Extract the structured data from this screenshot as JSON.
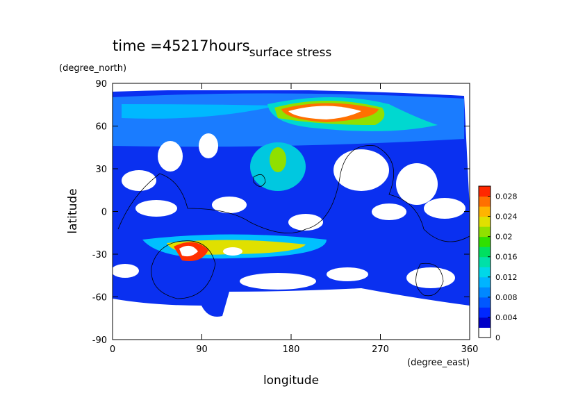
{
  "chart_data": {
    "type": "contour",
    "title": "surface stress",
    "subtitle": "time =45217hours",
    "x_label": "longitude",
    "x_unit": "(degree_east)",
    "y_label": "latitude",
    "y_unit": "(degree_north)",
    "xlim": [
      0,
      360
    ],
    "xticks": [
      0,
      90,
      180,
      270,
      360
    ],
    "ylim": [
      -90,
      90
    ],
    "yticks": [
      -90,
      -60,
      -30,
      0,
      30,
      60,
      90
    ],
    "clim": [
      0,
      0.03
    ],
    "cticks": [
      0,
      0.004,
      0.008,
      0.012,
      0.016,
      0.02,
      0.024,
      0.028
    ],
    "colors": [
      "#ffffff",
      "#0000c8",
      "#0028ff",
      "#0058ff",
      "#0088ff",
      "#00b4ff",
      "#00d8e8",
      "#00e0a8",
      "#00e060",
      "#30e000",
      "#90e000",
      "#e0e000",
      "#ffb400",
      "#ff7000",
      "#ff2800"
    ]
  }
}
